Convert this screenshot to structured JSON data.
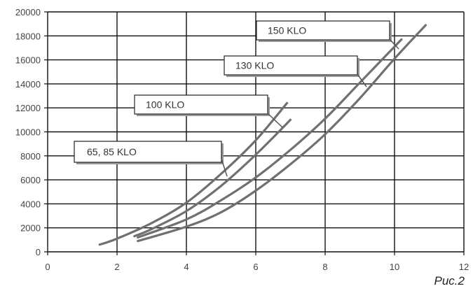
{
  "caption": "Рис.2",
  "colors": {
    "curve": "#707070",
    "grid": "#111111",
    "callout_border": "#222222",
    "callout_fill": "#ffffff"
  },
  "chart_data": {
    "type": "line",
    "title": "",
    "xlabel": "",
    "ylabel": "",
    "xlim": [
      0,
      12
    ],
    "ylim": [
      0,
      20000
    ],
    "x_ticks": [
      0,
      2,
      4,
      6,
      8,
      10,
      12
    ],
    "y_ticks": [
      0,
      2000,
      4000,
      6000,
      8000,
      10000,
      12000,
      14000,
      16000,
      18000,
      20000
    ],
    "grid": true,
    "legend": "callout labels",
    "series": [
      {
        "name": "65, 85 KLO",
        "x": [
          1.5,
          2,
          3,
          4,
          5,
          6,
          6.9
        ],
        "y": [
          600,
          1100,
          2400,
          4100,
          6500,
          9300,
          12400
        ]
      },
      {
        "name": "100 KLO",
        "x": [
          2.5,
          3,
          4,
          5,
          6,
          7
        ],
        "y": [
          1300,
          1900,
          3400,
          5500,
          8100,
          11000
        ]
      },
      {
        "name": "130 KLO",
        "x": [
          2.6,
          4,
          5,
          6,
          7,
          8,
          9,
          10.2
        ],
        "y": [
          1200,
          2700,
          4300,
          6200,
          8500,
          11100,
          14100,
          17700
        ]
      },
      {
        "name": "150 KLO",
        "x": [
          2.6,
          4,
          5,
          6,
          7,
          8,
          9,
          10,
          10.9
        ],
        "y": [
          900,
          2100,
          3300,
          5100,
          7300,
          9800,
          12800,
          16100,
          18900
        ]
      }
    ]
  }
}
